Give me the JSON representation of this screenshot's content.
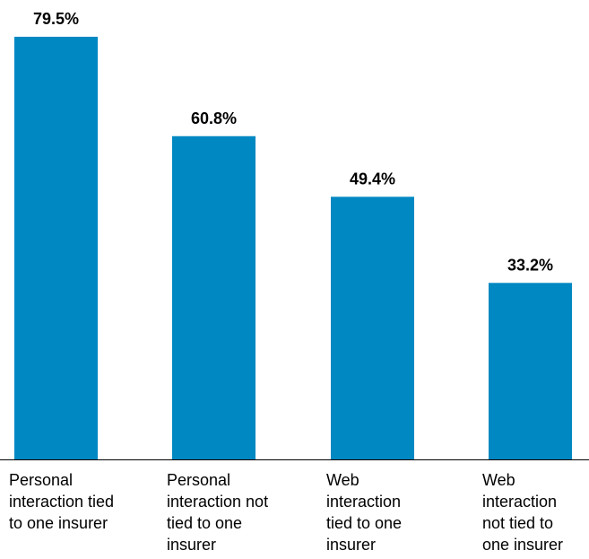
{
  "chart_data": {
    "type": "bar",
    "title": "",
    "xlabel": "",
    "ylabel": "",
    "categories": [
      "Personal interaction tied to one insurer",
      "Personal interaction not tied to one insurer",
      "Web interaction tied to one insurer",
      "Web interaction not tied to one insurer"
    ],
    "category_lines": [
      [
        "Personal",
        "interaction tied",
        "to one insurer"
      ],
      [
        "Personal",
        "interaction not",
        "tied to one",
        "insurer"
      ],
      [
        "Web",
        "interaction",
        "tied to one",
        "insurer"
      ],
      [
        "Web",
        "interaction",
        "not tied to",
        "one insurer"
      ]
    ],
    "values": [
      79.5,
      60.8,
      49.4,
      33.2
    ],
    "value_labels": [
      "79.5%",
      "60.8%",
      "49.4%",
      "33.2%"
    ],
    "ylim": [
      0,
      80
    ],
    "grid": false,
    "legend": "none",
    "colors": {
      "bar": "#0088c2",
      "axis": "#000000"
    }
  }
}
